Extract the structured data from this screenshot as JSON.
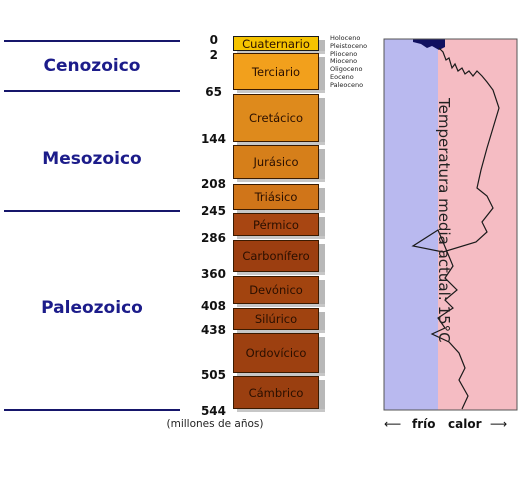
{
  "eras": [
    {
      "name": "Cenozoico"
    },
    {
      "name": "Mesozoico"
    },
    {
      "name": "Paleozoico"
    }
  ],
  "ticks": [
    "0",
    "2",
    "65",
    "144",
    "208",
    "245",
    "286",
    "360",
    "408",
    "438",
    "505",
    "544"
  ],
  "periods": [
    {
      "label": "Cuaternario",
      "color": "#f5c300"
    },
    {
      "label": "Terciario",
      "color": "#f2a01c"
    },
    {
      "label": "Cretácico",
      "color": "#de8a1c"
    },
    {
      "label": "Jurásico",
      "color": "#d67f1a"
    },
    {
      "label": "Triásico",
      "color": "#d07519"
    },
    {
      "label": "Pérmico",
      "color": "#a84612"
    },
    {
      "label": "Carbonífero",
      "color": "#9c3e10"
    },
    {
      "label": "Devónico",
      "color": "#a2440f"
    },
    {
      "label": "Silúrico",
      "color": "#a04310"
    },
    {
      "label": "Ordovícico",
      "color": "#9d4010"
    },
    {
      "label": "Cámbrico",
      "color": "#9a3f10"
    }
  ],
  "epochs": [
    "Holoceno",
    "Pleistoceno",
    "Plioceno",
    "Mioceno",
    "Oligoceno",
    "Eoceno",
    "Paleoceno"
  ],
  "units_label": "(millones de años)",
  "temperature_label": "Temperatura media actual: 15°C",
  "scale": {
    "cold": "frío",
    "warm": "calor"
  },
  "colors": {
    "cold_zone": "#b9b9ef",
    "warm_zone": "#f5bcc3",
    "curve": "#1a1a1a",
    "era_text": "#1c1c8a"
  }
}
